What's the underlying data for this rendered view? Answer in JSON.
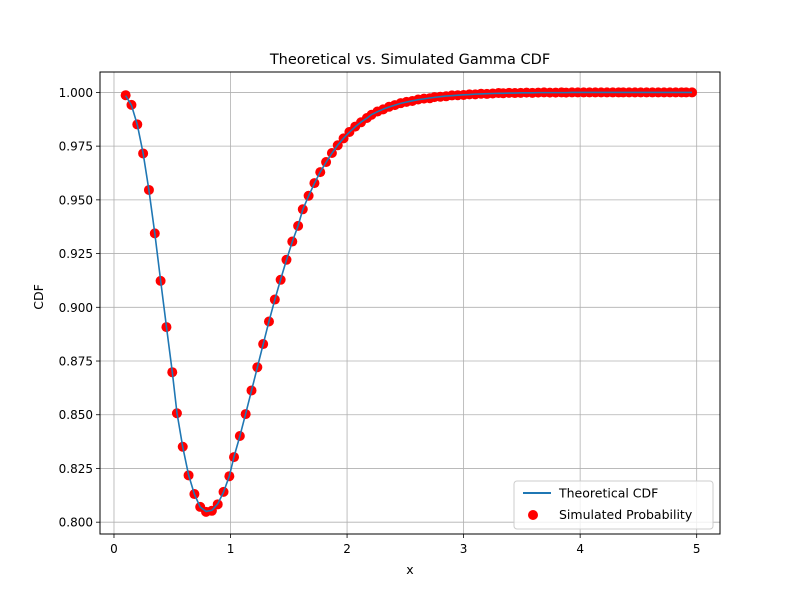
{
  "chart_data": {
    "type": "line",
    "title": "Theoretical vs. Simulated Gamma CDF",
    "xlabel": "x",
    "ylabel": "CDF",
    "xlim": [
      -0.12,
      5.2
    ],
    "ylim": [
      0.7945,
      1.0095
    ],
    "xticks": [
      0,
      1,
      2,
      3,
      4,
      5
    ],
    "xtick_labels": [
      "0",
      "1",
      "2",
      "3",
      "4",
      "5"
    ],
    "yticks": [
      0.8,
      0.825,
      0.85,
      0.875,
      0.9,
      0.925,
      0.95,
      0.975,
      1.0
    ],
    "ytick_labels": [
      "0.800",
      "0.825",
      "0.850",
      "0.875",
      "0.900",
      "0.925",
      "0.950",
      "0.975",
      "1.000"
    ],
    "grid": true,
    "legend_position": "lower-right",
    "series": [
      {
        "name": "Theoretical CDF",
        "kind": "line",
        "color": "#1f77b4",
        "x": [
          0.1,
          0.15,
          0.2,
          0.25,
          0.3,
          0.35,
          0.4,
          0.45,
          0.5,
          0.54,
          0.59,
          0.64,
          0.69,
          0.74,
          0.79,
          0.84,
          0.89,
          0.94,
          0.99,
          1.03,
          1.08,
          1.13,
          1.18,
          1.23,
          1.28,
          1.33,
          1.38,
          1.43,
          1.48,
          1.53,
          1.58,
          1.62,
          1.67,
          1.72,
          1.77,
          1.82,
          1.87,
          1.92,
          1.97,
          2.02,
          2.07,
          2.12,
          2.17,
          2.21,
          2.26,
          2.31,
          2.36,
          2.41,
          2.46,
          2.51,
          2.56,
          2.61,
          2.66,
          2.71,
          2.75,
          2.8,
          2.85,
          2.9,
          2.95,
          3.0,
          3.05,
          3.1,
          3.15,
          3.2,
          3.25,
          3.3,
          3.34,
          3.39,
          3.44,
          3.49,
          3.54,
          3.59,
          3.64,
          3.69,
          3.74,
          3.79,
          3.84,
          3.88,
          3.93,
          3.98,
          4.03,
          4.08,
          4.13,
          4.18,
          4.23,
          4.28,
          4.33,
          4.37,
          4.42,
          4.47,
          4.52,
          4.57,
          4.62,
          4.67,
          4.72,
          4.77,
          4.82,
          4.87,
          4.91,
          4.96
        ],
        "y": [
          0.9985,
          0.994,
          0.985,
          0.9717,
          0.9544,
          0.9345,
          0.9125,
          0.891,
          0.87,
          0.851,
          0.835,
          0.822,
          0.813,
          0.807,
          0.805,
          0.8055,
          0.8085,
          0.814,
          0.8215,
          0.8305,
          0.84,
          0.8505,
          0.8612,
          0.872,
          0.8828,
          0.8935,
          0.9035,
          0.913,
          0.922,
          0.9305,
          0.938,
          0.9455,
          0.9518,
          0.9577,
          0.963,
          0.9675,
          0.9717,
          0.9755,
          0.9787,
          0.9815,
          0.984,
          0.9862,
          0.988,
          0.9897,
          0.991,
          0.9922,
          0.9932,
          0.9941,
          0.9949,
          0.9955,
          0.9961,
          0.9966,
          0.997,
          0.9974,
          0.9977,
          0.998,
          0.9983,
          0.9985,
          0.9987,
          0.9989,
          0.999,
          0.9992,
          0.9993,
          0.9994,
          0.9995,
          0.9996,
          0.9996,
          0.9997,
          0.9997,
          0.9998,
          0.9998,
          0.9998,
          0.9999,
          0.9999,
          0.9999,
          0.9999,
          0.9999,
          0.9999,
          1.0,
          1.0,
          1.0,
          1.0,
          1.0,
          1.0,
          1.0,
          1.0,
          1.0,
          1.0,
          1.0,
          1.0,
          1.0,
          1.0,
          1.0,
          1.0,
          1.0,
          1.0,
          1.0,
          1.0,
          1.0,
          1.0
        ]
      },
      {
        "name": "Simulated Probability",
        "kind": "scatter",
        "color": "#ff0000",
        "x": [
          0.1,
          0.15,
          0.2,
          0.25,
          0.3,
          0.35,
          0.4,
          0.45,
          0.5,
          0.54,
          0.59,
          0.64,
          0.69,
          0.74,
          0.79,
          0.84,
          0.89,
          0.94,
          0.99,
          1.03,
          1.08,
          1.13,
          1.18,
          1.23,
          1.28,
          1.33,
          1.38,
          1.43,
          1.48,
          1.53,
          1.58,
          1.62,
          1.67,
          1.72,
          1.77,
          1.82,
          1.87,
          1.92,
          1.97,
          2.02,
          2.07,
          2.12,
          2.17,
          2.21,
          2.26,
          2.31,
          2.36,
          2.41,
          2.46,
          2.51,
          2.56,
          2.61,
          2.66,
          2.71,
          2.75,
          2.8,
          2.85,
          2.9,
          2.95,
          3.0,
          3.05,
          3.1,
          3.15,
          3.2,
          3.25,
          3.3,
          3.34,
          3.39,
          3.44,
          3.49,
          3.54,
          3.59,
          3.64,
          3.69,
          3.74,
          3.79,
          3.84,
          3.88,
          3.93,
          3.98,
          4.03,
          4.08,
          4.13,
          4.18,
          4.23,
          4.28,
          4.33,
          4.37,
          4.42,
          4.47,
          4.52,
          4.57,
          4.62,
          4.67,
          4.72,
          4.77,
          4.82,
          4.87,
          4.91,
          4.96
        ],
        "y": [
          0.9987,
          0.9942,
          0.9851,
          0.9716,
          0.9546,
          0.9344,
          0.9123,
          0.8908,
          0.8698,
          0.8507,
          0.8351,
          0.8218,
          0.8131,
          0.8071,
          0.8048,
          0.8053,
          0.8083,
          0.8141,
          0.8214,
          0.8303,
          0.8401,
          0.8503,
          0.8613,
          0.8721,
          0.8829,
          0.8934,
          0.9036,
          0.9128,
          0.9221,
          0.9306,
          0.9379,
          0.9456,
          0.9519,
          0.9578,
          0.9629,
          0.9676,
          0.9718,
          0.9754,
          0.9786,
          0.9816,
          0.9841,
          0.9861,
          0.9881,
          0.9896,
          0.9911,
          0.9921,
          0.9933,
          0.9941,
          0.995,
          0.9956,
          0.996,
          0.9967,
          0.9971,
          0.9973,
          0.9978,
          0.998,
          0.9982,
          0.9986,
          0.9987,
          0.9988,
          0.9991,
          0.9991,
          0.9994,
          0.9993,
          0.9995,
          0.9997,
          0.9996,
          0.9998,
          0.9997,
          0.9998,
          0.9999,
          0.9998,
          0.9999,
          1.0,
          0.9999,
          0.9999,
          1.0,
          0.9999,
          1.0,
          1.0,
          1.0,
          1.0,
          1.0,
          1.0,
          1.0,
          1.0,
          1.0,
          1.0,
          1.0,
          1.0,
          1.0,
          1.0,
          1.0,
          1.0,
          1.0,
          1.0,
          1.0,
          1.0,
          1.0,
          1.0
        ]
      }
    ]
  },
  "colors": {
    "line": "#1f77b4",
    "scatter": "#ff0000",
    "grid": "#b0b0b0",
    "axis": "#000000"
  }
}
